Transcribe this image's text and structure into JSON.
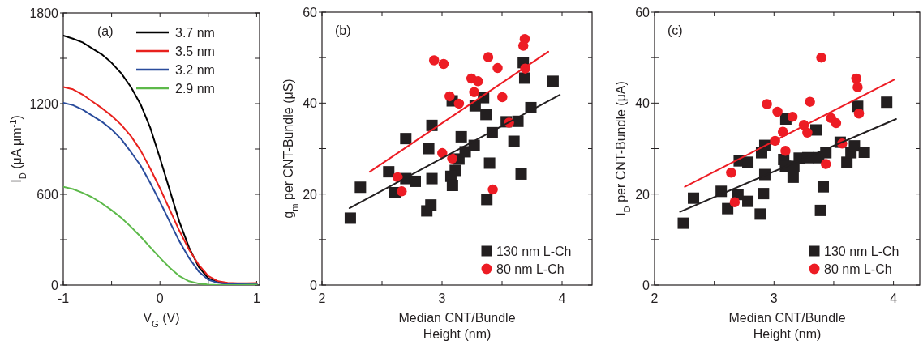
{
  "chart_data": [
    {
      "type": "line",
      "xlabel": "V$_{G}$ (V)",
      "ylabel": "I$_{D}$ (μA μm$^{-1}$)",
      "annotations": [
        "(a)"
      ],
      "xlim": [
        -1,
        1.03
      ],
      "ylim": [
        0,
        1800
      ],
      "xticks": [
        -1,
        {
          "value": -0.5,
          "label": null
        },
        0,
        {
          "value": 0.5,
          "label": null
        },
        1
      ],
      "yticks": [
        0,
        {
          "value": 300,
          "label": null
        },
        600,
        {
          "value": 900,
          "label": null
        },
        1200,
        {
          "value": 1500,
          "label": null
        },
        1800
      ],
      "grid": false,
      "legend": "top right",
      "x": [
        -1,
        -0.9,
        -0.8,
        -0.7,
        -0.6,
        -0.5,
        -0.4,
        -0.3,
        -0.2,
        -0.1,
        0,
        0.1,
        0.2,
        0.3,
        0.4,
        0.5,
        0.6,
        0.7,
        0.8,
        0.9,
        1.0
      ],
      "series": [
        {
          "name": "3.7 nm",
          "color": "#000000",
          "values": [
            1650,
            1630,
            1605,
            1565,
            1525,
            1470,
            1400,
            1310,
            1195,
            1040,
            840,
            630,
            420,
            250,
            120,
            45,
            18,
            10,
            8,
            8,
            9
          ]
        },
        {
          "name": "3.5 nm",
          "color": "#e8211d",
          "values": [
            1310,
            1295,
            1260,
            1215,
            1170,
            1120,
            1060,
            985,
            890,
            770,
            640,
            500,
            360,
            235,
            135,
            60,
            25,
            15,
            12,
            12,
            14
          ]
        },
        {
          "name": "3.2 nm",
          "color": "#2a4c9c",
          "values": [
            1205,
            1190,
            1160,
            1120,
            1080,
            1030,
            965,
            880,
            790,
            675,
            550,
            420,
            290,
            180,
            90,
            35,
            15,
            10,
            8,
            8,
            10
          ]
        },
        {
          "name": "2.9 nm",
          "color": "#5db94a",
          "values": [
            650,
            635,
            610,
            580,
            540,
            495,
            445,
            385,
            320,
            250,
            180,
            115,
            60,
            25,
            10,
            3,
            0,
            0,
            0,
            2,
            3
          ]
        }
      ]
    },
    {
      "type": "scatter",
      "xlabel": "Median CNT/Bundle Height (nm)",
      "ylabel": "g$_{m}$ per CNT-Bundle (μS)",
      "annotations": [
        "(b)"
      ],
      "xlim": [
        2,
        4.25
      ],
      "ylim": [
        0,
        60
      ],
      "xticks": [
        2,
        {
          "value": 2.5,
          "label": null
        },
        3,
        {
          "value": 3.5,
          "label": null
        },
        4
      ],
      "yticks": [
        0,
        {
          "value": 10,
          "label": null
        },
        20,
        {
          "value": 30,
          "label": null
        },
        40,
        {
          "value": 50,
          "label": null
        },
        60
      ],
      "grid": false,
      "legend": "bottom right",
      "series": [
        {
          "name": "130 nm L-Ch",
          "color": "#231f20",
          "marker": "square",
          "x": [
            2.236,
            2.32,
            2.556,
            2.608,
            2.698,
            2.777,
            2.698,
            2.873,
            2.907,
            2.916,
            2.889,
            2.916,
            3.085,
            3.16,
            3.141,
            3.193,
            3.268,
            3.276,
            3.346,
            3.366,
            3.11,
            3.074,
            3.087,
            3.373,
            3.396,
            3.418,
            3.535,
            3.599,
            3.632,
            3.659,
            3.677,
            3.689,
            3.74,
            3.925
          ],
          "values": [
            14.7,
            21.5,
            24.9,
            20.3,
            23.4,
            22.8,
            32.2,
            16.3,
            17.6,
            23.4,
            30.0,
            35.1,
            40.5,
            32.6,
            27.7,
            29.3,
            30.7,
            39.4,
            41.2,
            37.5,
            25.2,
            23.9,
            21.9,
            18.8,
            26.8,
            33.5,
            35.9,
            31.6,
            36.0,
            24.4,
            48.9,
            45.5,
            39.0,
            44.8
          ]
        },
        {
          "name": "80 nm L-Ch",
          "color": "#ed1c24",
          "marker": "circle",
          "x": [
            2.63,
            2.664,
            2.934,
            3.013,
            3.063,
            3.141,
            3.002,
            3.085,
            3.245,
            3.299,
            3.268,
            3.385,
            3.463,
            3.502,
            3.558,
            3.423,
            3.689,
            3.677,
            3.693
          ],
          "values": [
            23.7,
            20.6,
            49.4,
            48.6,
            41.5,
            39.9,
            29.0,
            27.8,
            45.4,
            44.8,
            42.4,
            50.1,
            47.7,
            41.3,
            35.7,
            21.0,
            54.1,
            52.6,
            47.6
          ]
        },
        {
          "type": "line",
          "color": "#231f20",
          "x": [
            2.229,
            3.981
          ],
          "values": [
            16.9,
            41.8
          ]
        },
        {
          "type": "line",
          "color": "#ed1c24",
          "x": [
            2.398,
            3.885
          ],
          "values": [
            24.9,
            51.3
          ]
        }
      ]
    },
    {
      "type": "scatter",
      "xlabel": "Median CNT/Bundle Height (nm)",
      "ylabel": "I$_{D}$ per CNT-Bundle (μA)",
      "annotations": [
        "(c)"
      ],
      "xlim": [
        2,
        4.22
      ],
      "ylim": [
        0,
        60
      ],
      "xticks": [
        2,
        {
          "value": 2.5,
          "label": null
        },
        3,
        {
          "value": 3.5,
          "label": null
        },
        4
      ],
      "yticks": [
        0,
        {
          "value": 10,
          "label": null
        },
        20,
        {
          "value": 30,
          "label": null
        },
        40,
        {
          "value": 50,
          "label": null
        },
        60
      ],
      "grid": false,
      "legend": "bottom right",
      "series": [
        {
          "name": "130 nm L-Ch",
          "color": "#231f20",
          "marker": "square",
          "x": [
            2.241,
            2.326,
            2.558,
            2.612,
            2.698,
            2.781,
            2.885,
            2.912,
            2.923,
            2.896,
            2.923,
            2.709,
            2.781,
            3.099,
            3.081,
            3.096,
            3.16,
            3.166,
            3.211,
            3.283,
            3.351,
            3.374,
            3.434,
            3.412,
            3.389,
            3.554,
            3.61,
            3.644,
            3.673,
            3.756,
            3.7,
            3.943
          ],
          "values": [
            13.6,
            19.1,
            20.6,
            16.8,
            19.9,
            18.4,
            15.6,
            20.1,
            24.3,
            29.1,
            30.7,
            27.3,
            27.0,
            36.5,
            27.6,
            26.1,
            23.7,
            26.1,
            27.9,
            28.0,
            34.1,
            28.0,
            29.1,
            21.6,
            16.4,
            31.4,
            27.0,
            29.1,
            30.6,
            29.2,
            39.3,
            40.2
          ]
        },
        {
          "name": "80 nm L-Ch",
          "color": "#ed1c24",
          "marker": "circle",
          "x": [
            2.641,
            2.671,
            2.941,
            3.029,
            3.155,
            3.074,
            3.009,
            3.096,
            3.25,
            3.279,
            3.301,
            3.396,
            3.477,
            3.52,
            3.57,
            3.434,
            3.689,
            3.7,
            3.711
          ],
          "values": [
            24.7,
            18.2,
            39.8,
            38.1,
            37.0,
            33.7,
            31.7,
            29.5,
            35.2,
            33.5,
            40.3,
            50.0,
            36.7,
            35.6,
            31.1,
            26.6,
            45.4,
            43.5,
            37.7
          ]
        },
        {
          "type": "line",
          "color": "#231f20",
          "x": [
            2.214,
            4.022
          ],
          "values": [
            16.1,
            36.5
          ]
        },
        {
          "type": "line",
          "color": "#ed1c24",
          "x": [
            2.254,
            4.009
          ],
          "values": [
            21.6,
            45.2
          ]
        }
      ]
    }
  ]
}
